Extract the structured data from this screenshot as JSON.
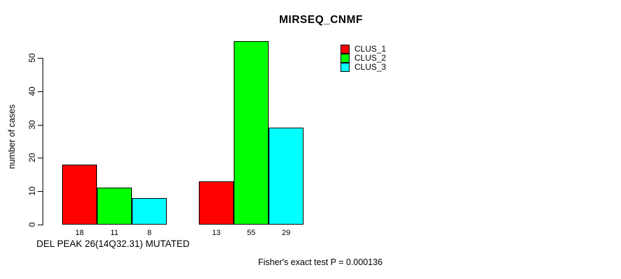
{
  "chart_data": {
    "type": "bar",
    "title": "MIRSEQ_CNMF",
    "ylabel": "number of cases",
    "xlabel": "DEL PEAK 26(14Q32.31) MUTATED",
    "annotation": "Fisher's exact test P = 0.000136",
    "ylim": [
      0,
      55
    ],
    "yticks": [
      0,
      10,
      20,
      30,
      40,
      50
    ],
    "grid": false,
    "groups": [
      "group1",
      "group2"
    ],
    "series": [
      {
        "name": "CLUS_1",
        "color": "#ff0000",
        "values": [
          18,
          13
        ]
      },
      {
        "name": "CLUS_2",
        "color": "#00ff00",
        "values": [
          11,
          55
        ]
      },
      {
        "name": "CLUS_3",
        "color": "#00ffff",
        "values": [
          8,
          29
        ]
      }
    ],
    "bar_value_labels": [
      [
        18,
        11,
        8
      ],
      [
        13,
        55,
        29
      ]
    ],
    "legend": {
      "position": "top-right",
      "entries": [
        {
          "label": "CLUS_1",
          "color": "#ff0000"
        },
        {
          "label": "CLUS_2",
          "color": "#00ff00"
        },
        {
          "label": "CLUS_3",
          "color": "#00ffff"
        }
      ]
    }
  }
}
